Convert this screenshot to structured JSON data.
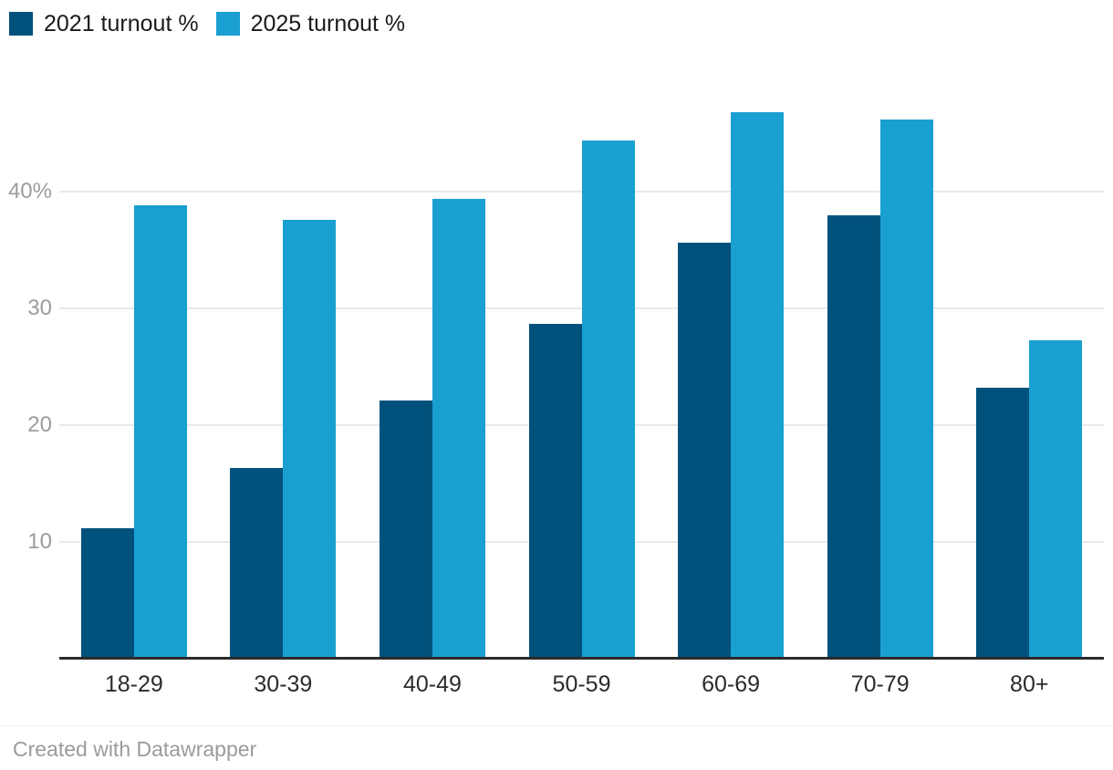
{
  "legend": {
    "items": [
      {
        "label": "2021 turnout %",
        "color": "#00527c"
      },
      {
        "label": "2025 turnout %",
        "color": "#19a0d1"
      }
    ]
  },
  "chart_data": {
    "type": "bar",
    "categories": [
      "18-29",
      "30-39",
      "40-49",
      "50-59",
      "60-69",
      "70-79",
      "80+"
    ],
    "series": [
      {
        "name": "2021 turnout %",
        "color": "#00527c",
        "values": [
          11.2,
          16.3,
          22.1,
          28.7,
          35.6,
          38.0,
          23.2
        ]
      },
      {
        "name": "2025 turnout %",
        "color": "#19a0d1",
        "values": [
          38.8,
          37.6,
          39.4,
          44.4,
          46.8,
          46.2,
          27.3
        ]
      }
    ],
    "title": "",
    "xlabel": "",
    "ylabel": "",
    "ylim": [
      0,
      50
    ],
    "yticks": [
      {
        "value": 10,
        "label": "10"
      },
      {
        "value": 20,
        "label": "20"
      },
      {
        "value": 30,
        "label": "30"
      },
      {
        "value": 40,
        "label": "40%"
      }
    ],
    "grid": true,
    "legend_position": "top-left",
    "colors": {
      "grid": "#e9e9e9",
      "axis": "#2b2b2b",
      "tick_text": "#9c9c9c",
      "category_text": "#2b2b2b"
    }
  },
  "footer": {
    "credit": "Created with Datawrapper"
  }
}
